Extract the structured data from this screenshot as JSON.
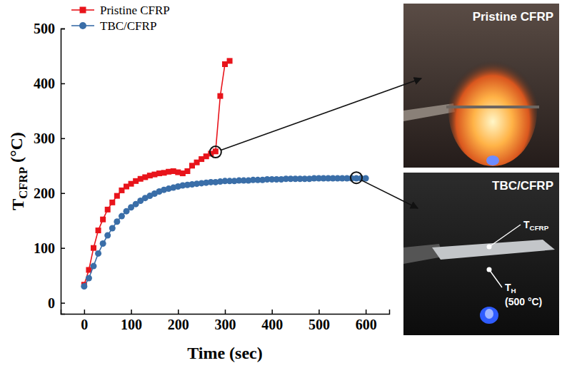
{
  "chart_data": {
    "type": "line",
    "xlabel": "Time (sec)",
    "ylabel": "TCFRP (°C)",
    "xlim": [
      -50,
      650
    ],
    "xticks": [
      0,
      100,
      200,
      300,
      400,
      500,
      600
    ],
    "ylim": [
      -20,
      500
    ],
    "yticks": [
      0,
      100,
      200,
      300,
      400,
      500
    ],
    "grid": false,
    "legend": "upper left",
    "series": [
      {
        "name": "Pristine CFRP",
        "color": "#e8141b",
        "marker": "square",
        "line_style": "solid",
        "x": [
          0,
          10,
          20,
          30,
          40,
          50,
          60,
          70,
          80,
          90,
          100,
          110,
          120,
          130,
          140,
          150,
          160,
          170,
          180,
          190,
          200,
          210,
          220,
          230,
          240,
          250,
          260,
          270,
          280,
          290,
          300,
          310
        ],
        "values": [
          33,
          60,
          100,
          132,
          152,
          170,
          183,
          195,
          205,
          212,
          217,
          222,
          226,
          229,
          232,
          234,
          236,
          237,
          239,
          240,
          238,
          236,
          240,
          250,
          256,
          262,
          267,
          272,
          276,
          377,
          435,
          441
        ]
      },
      {
        "name": "TBC/CFRP",
        "color": "#3a6ea8",
        "marker": "circle",
        "line_style": "solid",
        "x": [
          0,
          10,
          20,
          30,
          40,
          50,
          60,
          70,
          80,
          90,
          100,
          110,
          120,
          130,
          140,
          150,
          160,
          170,
          180,
          190,
          200,
          210,
          220,
          230,
          240,
          250,
          260,
          270,
          280,
          290,
          300,
          310,
          320,
          330,
          340,
          350,
          360,
          370,
          380,
          390,
          400,
          410,
          420,
          430,
          440,
          450,
          460,
          470,
          480,
          490,
          500,
          510,
          520,
          530,
          540,
          550,
          560,
          570,
          580,
          590,
          600
        ],
        "values": [
          30,
          45,
          67,
          90,
          108,
          123,
          136,
          148,
          158,
          167,
          174,
          180,
          186,
          191,
          195,
          199,
          203,
          206,
          208,
          210,
          212,
          214,
          215,
          216,
          217,
          218,
          219,
          220,
          220,
          221,
          222,
          222,
          222,
          223,
          223,
          223,
          224,
          224,
          224,
          225,
          225,
          225,
          225,
          226,
          226,
          226,
          226,
          226,
          226,
          227,
          227,
          227,
          227,
          227,
          227,
          227,
          227,
          227,
          227,
          227,
          227
        ]
      }
    ],
    "annotations": [
      {
        "x": 280,
        "y": 275,
        "text": "Pristine CFRP"
      },
      {
        "x": 580,
        "y": 228,
        "text": "TBC/CFRP",
        "labels": [
          "TCFRP",
          "TH",
          "(500 °C)"
        ]
      }
    ]
  }
}
